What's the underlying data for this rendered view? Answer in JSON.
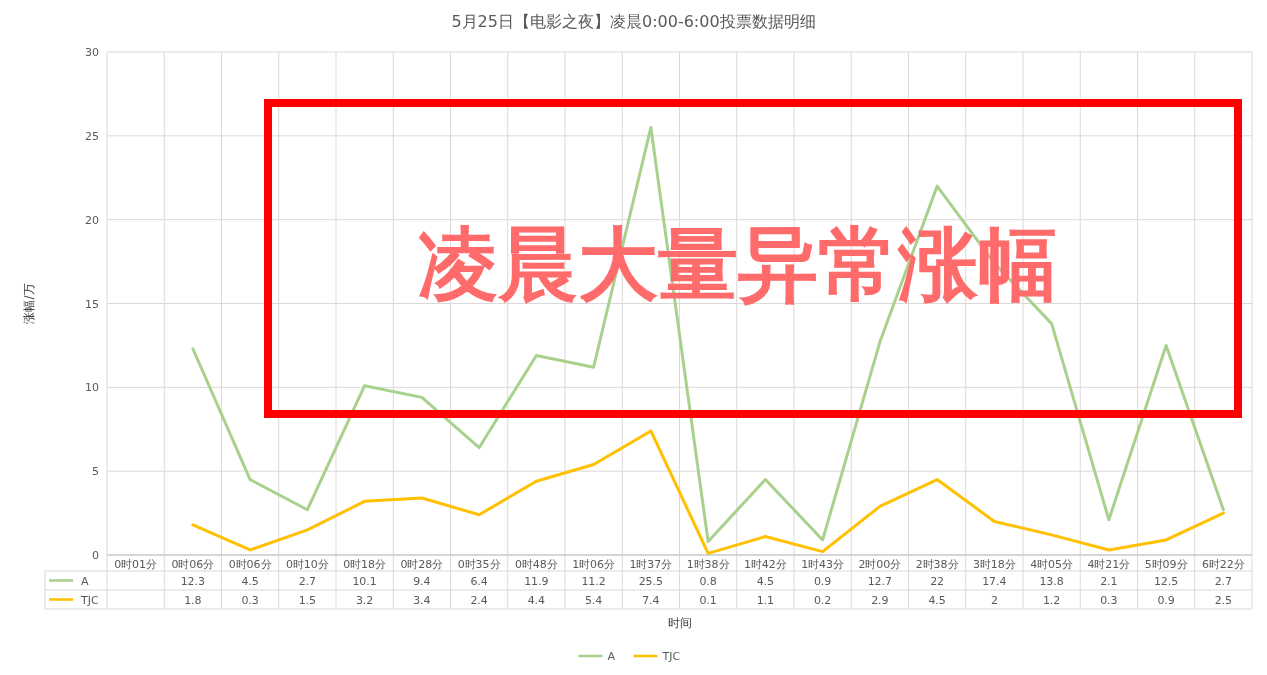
{
  "chart_data": {
    "type": "line",
    "title": "5月25日【电影之夜】凌晨0:00-6:00投票数据明细",
    "xlabel": "时间",
    "ylabel": "涨幅/万",
    "categories": [
      "0时01分",
      "0时06分",
      "0时06分",
      "0时10分",
      "0时18分",
      "0时28分",
      "0时35分",
      "0时48分",
      "1时06分",
      "1时37分",
      "1时38分",
      "1时42分",
      "1时43分",
      "2时00分",
      "2时38分",
      "3时18分",
      "4时05分",
      "4时21分",
      "5时09分",
      "6时22分"
    ],
    "series": [
      {
        "name": "A",
        "color": "#a9d18e",
        "values": [
          null,
          12.3,
          4.5,
          2.7,
          10.1,
          9.4,
          6.4,
          11.9,
          11.2,
          25.5,
          0.8,
          4.5,
          0.9,
          12.7,
          22,
          17.4,
          13.8,
          2.1,
          12.5,
          2.7
        ]
      },
      {
        "name": "TJC",
        "color": "#ffc000",
        "values": [
          null,
          1.8,
          0.3,
          1.5,
          3.2,
          3.4,
          2.4,
          4.4,
          5.4,
          7.4,
          0.1,
          1.1,
          0.2,
          2.9,
          4.5,
          2,
          1.2,
          0.3,
          0.9,
          2.5
        ]
      }
    ],
    "ylim": [
      0,
      30
    ],
    "yticks": [
      0,
      5,
      10,
      15,
      20,
      25,
      30
    ],
    "grid": true,
    "legend": "bottom",
    "data_labels": true,
    "line_style": "solid",
    "annotations": [
      "凌晨大量异常涨幅"
    ]
  }
}
